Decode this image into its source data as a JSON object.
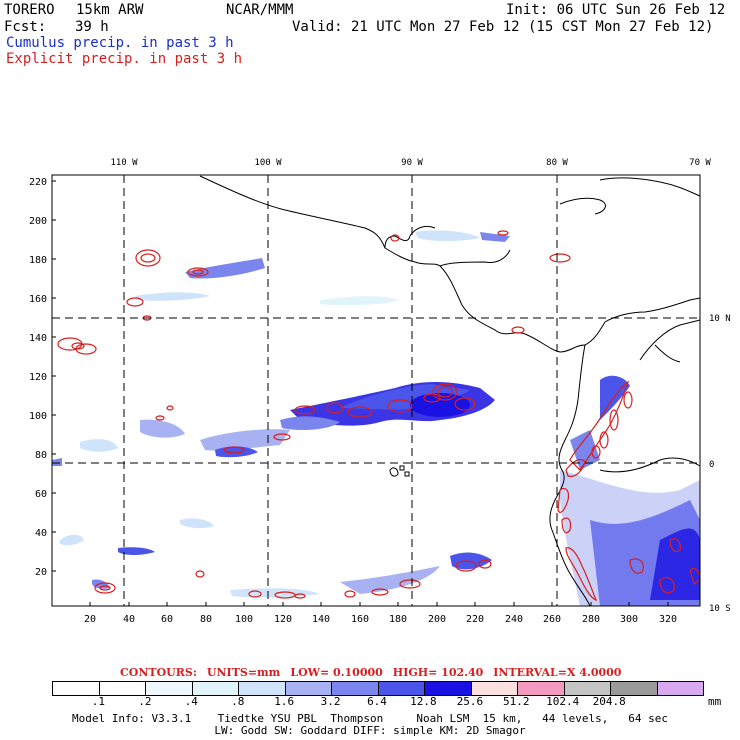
{
  "header": {
    "model": "TORERO",
    "resolution": "15km ARW",
    "org": "NCAR/MMM",
    "init": "Init: 06 UTC Sun 26 Feb 12",
    "fcst_label": "Fcst:",
    "fcst_hours": "39 h",
    "valid": "Valid: 21 UTC Mon 27 Feb 12 (15 CST Mon 27 Feb 12)",
    "field1": "Cumulus precip. in past 3 h",
    "field2": "Explicit precip. in past 3 h"
  },
  "map": {
    "lon_labels": [
      "110 W",
      "100 W",
      "90 W",
      "80 W",
      "70 W"
    ],
    "lat_labels": [
      "10 N",
      "0",
      "10 S"
    ],
    "y_ticks": [
      "220",
      "200",
      "180",
      "160",
      "140",
      "120",
      "100",
      "80",
      "60",
      "40",
      "20"
    ],
    "x_ticks": [
      "20",
      "40",
      "60",
      "80",
      "100",
      "120",
      "140",
      "160",
      "180",
      "200",
      "220",
      "240",
      "260",
      "280",
      "300",
      "320"
    ]
  },
  "contours": {
    "label": "CONTOURS:",
    "units": "UNITS=mm",
    "low": "LOW= 0.10000",
    "high": "HIGH= 102.40",
    "interval": "INTERVAL=X 4.0000"
  },
  "colorbar": {
    "colors": [
      "#ffffff",
      "#ffffff",
      "#f0f8ff",
      "#e0f4fa",
      "#cfe4fb",
      "#a8b2f2",
      "#7a86ee",
      "#4b55ea",
      "#1a12e2",
      "#fce0e0",
      "#f49ac0",
      "#c4c4c4",
      "#9a9a9a",
      "#d8a8f0"
    ],
    "labels": [
      ".1",
      ".2",
      ".4",
      ".8",
      "1.6",
      "3.2",
      "6.4",
      "12.8",
      "25.6",
      "51.2",
      "102.4",
      "204.8"
    ],
    "unit": "mm"
  },
  "footer": {
    "line1": "Model Info: V3.3.1    Tiedtke YSU PBL  Thompson     Noah LSM  15 km,   44 levels,   64 sec",
    "line2": "LW: Godd SW: Goddard DIFF: simple KM: 2D Smagor"
  }
}
